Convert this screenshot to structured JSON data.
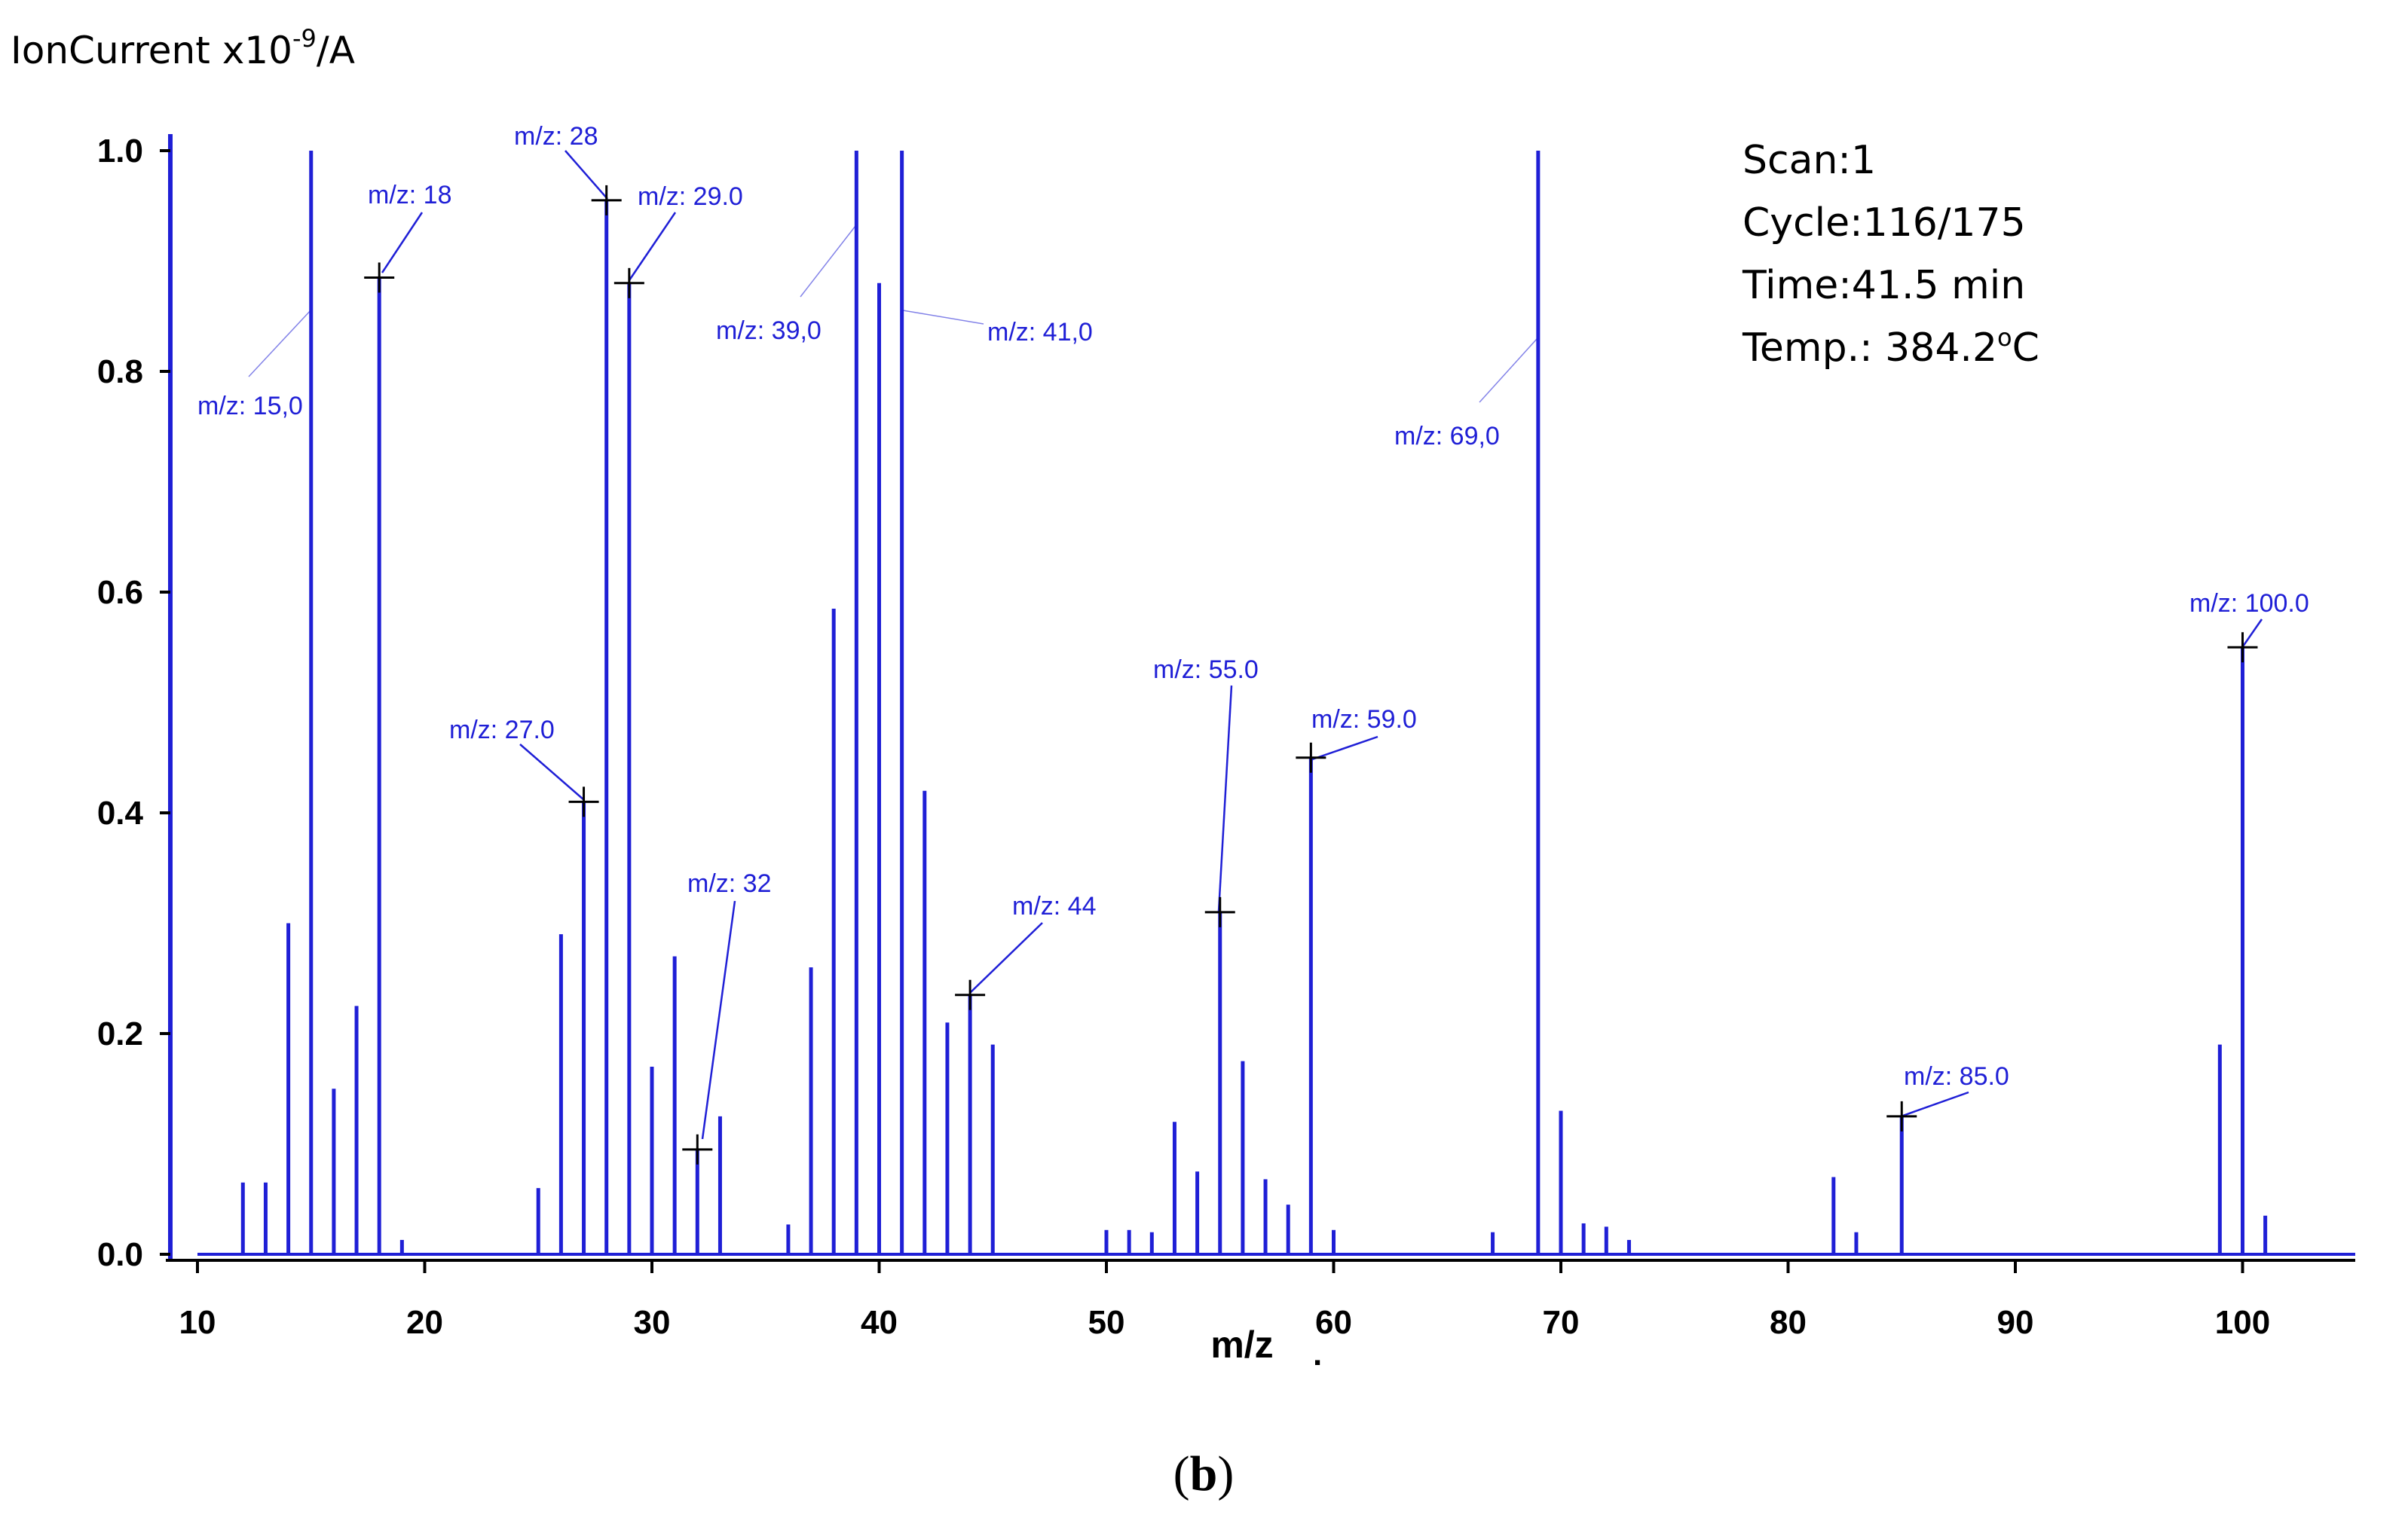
{
  "chart_data": {
    "type": "bar",
    "ylabel": "IonCurrent x10",
    "ylabel_exponent": "-9",
    "ylabel_unit": "/A",
    "xlabel": "m/z",
    "xlim": [
      10,
      105
    ],
    "ylim": [
      0,
      1.0
    ],
    "x_ticks": [
      10,
      20,
      30,
      40,
      50,
      60,
      70,
      80,
      90,
      100
    ],
    "y_ticks": [
      "0.0",
      "0.2",
      "0.4",
      "0.6",
      "0.8",
      "1.0"
    ],
    "grid": false,
    "color": "#1f1fd6",
    "x": [
      12,
      13,
      14,
      15,
      16,
      17,
      18,
      19,
      25,
      26,
      27,
      28,
      29,
      30,
      31,
      32,
      33,
      36,
      37,
      38,
      39,
      40,
      41,
      42,
      43,
      44,
      45,
      50,
      51,
      52,
      53,
      54,
      55,
      56,
      57,
      58,
      59,
      60,
      67,
      69,
      70,
      71,
      72,
      73,
      82,
      83,
      85,
      99,
      100,
      101
    ],
    "values": [
      0.065,
      0.065,
      0.3,
      1.0,
      0.15,
      0.225,
      0.885,
      0.013,
      0.06,
      0.29,
      0.41,
      0.955,
      0.88,
      0.17,
      0.27,
      0.095,
      0.125,
      0.027,
      0.26,
      0.585,
      1.0,
      0.88,
      1.0,
      0.42,
      0.21,
      0.235,
      0.19,
      0.022,
      0.022,
      0.02,
      0.12,
      0.075,
      0.31,
      0.175,
      0.068,
      0.045,
      0.45,
      0.022,
      0.02,
      1.0,
      0.13,
      0.028,
      0.025,
      0.013,
      0.07,
      0.02,
      0.125,
      0.19,
      0.55,
      0.035
    ],
    "annotations": [
      {
        "x": 15,
        "text": "m/z: 15,0",
        "marker": false
      },
      {
        "x": 18,
        "text": "m/z: 18",
        "marker": true
      },
      {
        "x": 27,
        "text": "m/z: 27.0",
        "marker": true
      },
      {
        "x": 28,
        "text": "m/z: 28",
        "marker": true
      },
      {
        "x": 29,
        "text": "m/z: 29.0",
        "marker": true
      },
      {
        "x": 32,
        "text": "m/z: 32",
        "marker": true
      },
      {
        "x": 39,
        "text": "m/z: 39,0",
        "marker": false
      },
      {
        "x": 41,
        "text": "m/z: 41,0",
        "marker": false
      },
      {
        "x": 44,
        "text": "m/z: 44",
        "marker": true
      },
      {
        "x": 55,
        "text": "m/z: 55.0",
        "marker": true
      },
      {
        "x": 59,
        "text": "m/z: 59.0",
        "marker": true
      },
      {
        "x": 69,
        "text": "m/z: 69,0",
        "marker": false
      },
      {
        "x": 85,
        "text": "m/z: 85.0",
        "marker": true
      },
      {
        "x": 100,
        "text": "m/z: 100.0",
        "marker": true
      }
    ],
    "info_box": [
      "Scan:1",
      "Cycle:116/175",
      "Time:41.5 min",
      "Temp.: 384.2"
    ],
    "info_temp_sup": "o",
    "info_temp_unit": "C"
  },
  "panel_label_open": "(",
  "panel_label": "b",
  "panel_label_close": ")",
  "stray_mark": "."
}
